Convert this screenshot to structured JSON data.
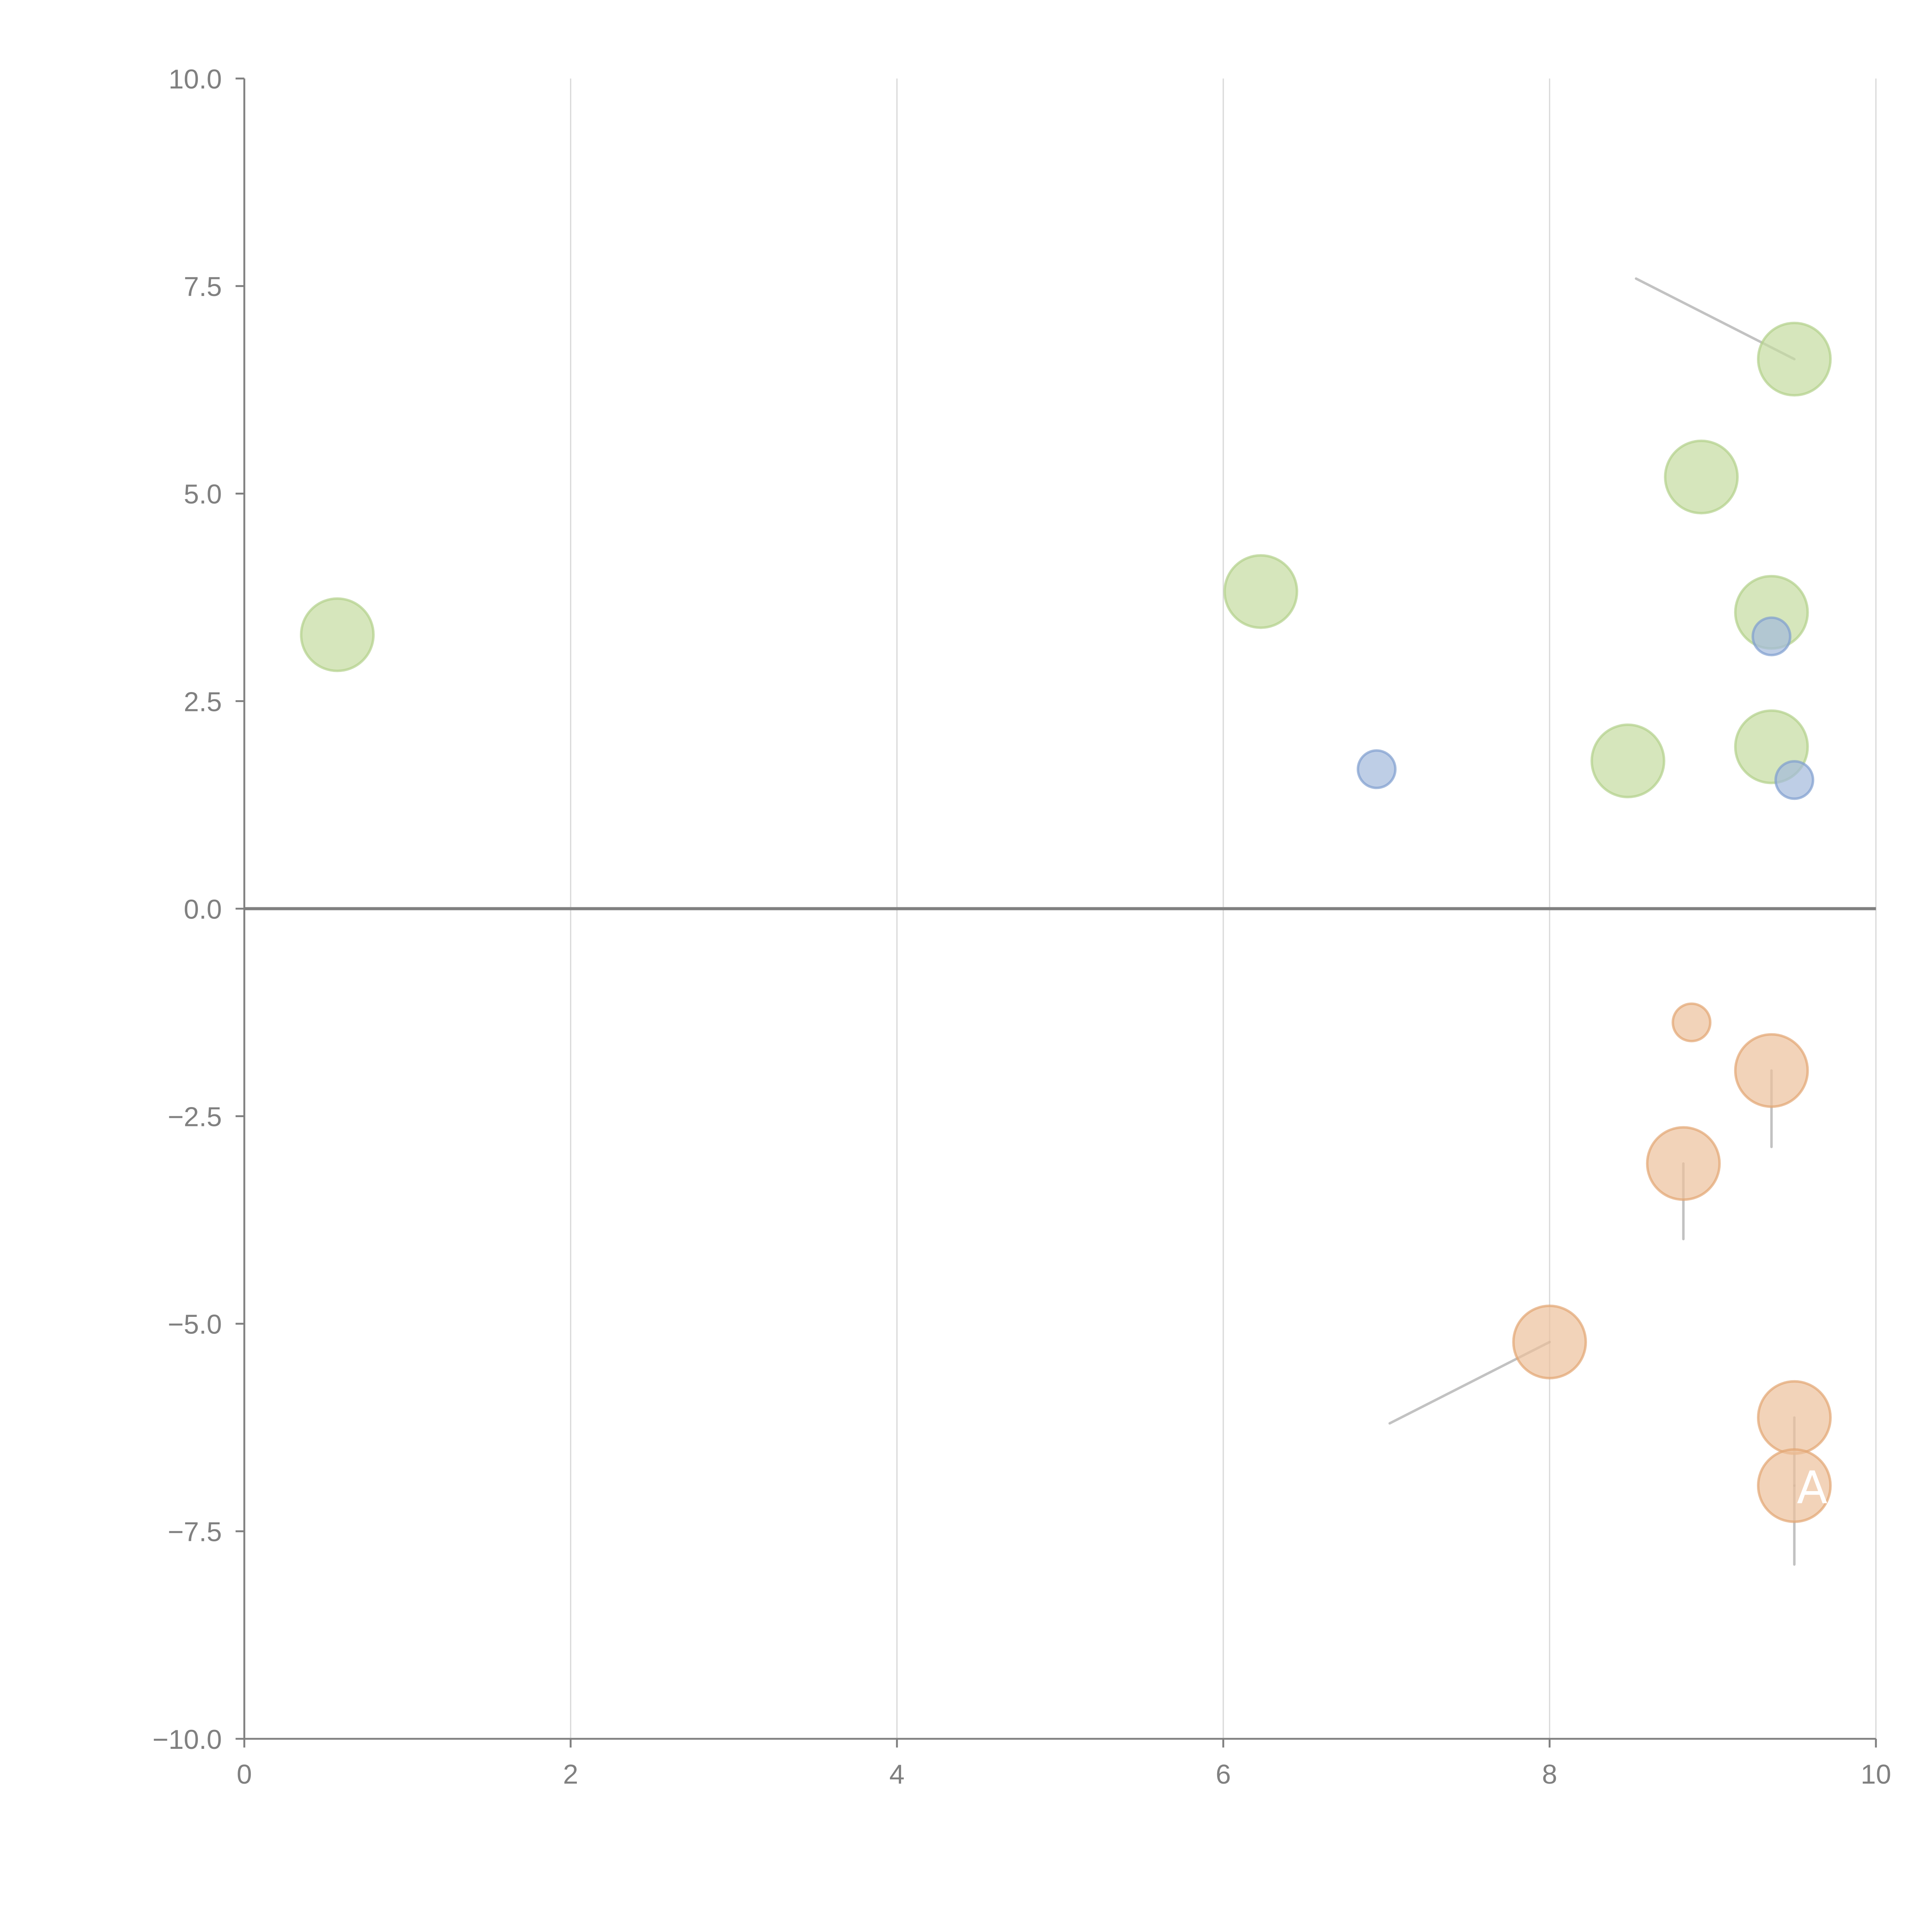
{
  "chart_data": {
    "type": "scatter",
    "title": "",
    "xlabel": "",
    "ylabel": "",
    "xlim": [
      0,
      10
    ],
    "ylim": [
      -10,
      10
    ],
    "x_ticks": [
      "0",
      "2",
      "4",
      "6",
      "8",
      "10"
    ],
    "x_tick_values": [
      0,
      2,
      4,
      6,
      8,
      10
    ],
    "y_ticks": [
      "10.0",
      "7.5",
      "5.0",
      "2.5",
      "0.0",
      "−2.5",
      "−5.0",
      "−7.5",
      "−10.0"
    ],
    "y_tick_values": [
      10,
      7.5,
      5,
      2.5,
      0,
      -2.5,
      -5,
      -7.5,
      -10
    ],
    "grid": "vertical",
    "zero_line": true,
    "series": [
      {
        "name": "green",
        "color": "#c5dca0",
        "stroke": "#b2d08a",
        "size": "large",
        "points": [
          {
            "x": 0.57,
            "y": 3.3
          },
          {
            "x": 6.23,
            "y": 3.82
          },
          {
            "x": 9.5,
            "y": 6.62,
            "lx": 8.53,
            "ly": 7.59
          },
          {
            "x": 8.93,
            "y": 5.2,
            "lx": 9.09,
            "ly": 5.47
          },
          {
            "x": 9.36,
            "y": 3.57,
            "lx": 9.29,
            "ly": 3.99
          },
          {
            "x": 8.48,
            "y": 1.78,
            "lx": 8.58,
            "ly": 1.42
          },
          {
            "x": 9.36,
            "y": 1.95,
            "lx": 9.17,
            "ly": 2.18
          }
        ]
      },
      {
        "name": "blue",
        "color": "#a3b9dc",
        "stroke": "#7f9ece",
        "size": "small",
        "points": [
          {
            "x": 6.94,
            "y": 1.68
          },
          {
            "x": 9.36,
            "y": 3.28
          },
          {
            "x": 9.5,
            "y": 1.55
          }
        ]
      },
      {
        "name": "orange",
        "color": "#ecc09b",
        "stroke": "#e2a572",
        "size": "large",
        "points": [
          {
            "x": 8.87,
            "y": -1.37,
            "small": true
          },
          {
            "x": 9.36,
            "y": -1.95,
            "lx": 9.36,
            "ly": -2.87
          },
          {
            "x": 8.82,
            "y": -3.07,
            "lx": 8.82,
            "ly": -3.98
          },
          {
            "x": 8.0,
            "y": -5.22,
            "lx": 7.02,
            "ly": -6.2
          },
          {
            "x": 9.5,
            "y": -6.13,
            "lx": 9.5,
            "ly": -6.95
          },
          {
            "x": 9.5,
            "y": -6.95,
            "lx": 9.5,
            "ly": -7.9,
            "label": "A"
          }
        ]
      }
    ]
  }
}
